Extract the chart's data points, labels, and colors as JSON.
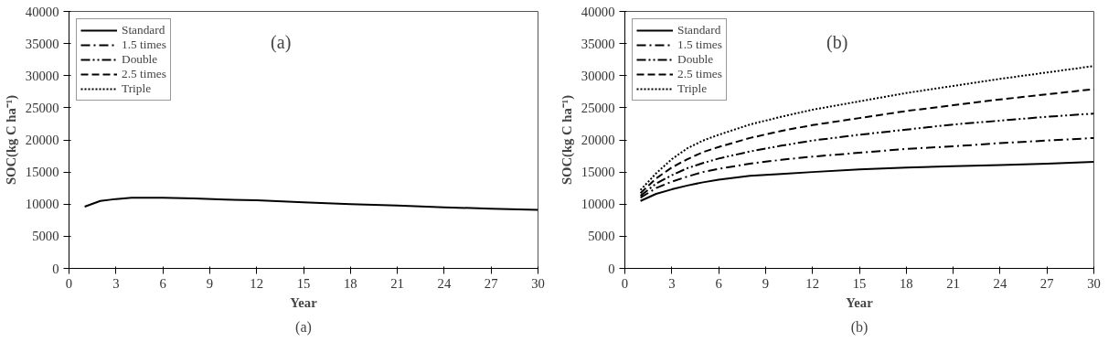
{
  "chart_data": [
    {
      "type": "line",
      "xlabel": "Year",
      "ylabel": "SOC(kg C ha⁻¹)",
      "xlim": [
        0,
        30
      ],
      "ylim": [
        0,
        40000
      ],
      "xticks": [
        0,
        3,
        6,
        9,
        12,
        15,
        18,
        21,
        24,
        27,
        30
      ],
      "yticks": [
        0,
        5000,
        10000,
        15000,
        20000,
        25000,
        30000,
        35000,
        40000
      ],
      "grid": false,
      "legend": "top left",
      "marker": "none",
      "annotations": [
        "(a)",
        "(a)"
      ],
      "x": [
        1,
        2,
        3,
        4,
        5,
        6,
        8,
        10,
        12,
        15,
        18,
        21,
        24,
        27,
        30
      ],
      "series": [
        {
          "name": "Standard",
          "color": "#000000",
          "line_style": "solid",
          "values": [
            9600,
            10500,
            10800,
            11000,
            11000,
            11000,
            10900,
            10700,
            10600,
            10300,
            10000,
            9800,
            9500,
            9300,
            9100
          ]
        },
        {
          "name": "1.5 times",
          "color": "#000000",
          "line_style": "dashdot",
          "values": [
            null,
            null,
            null,
            null,
            null,
            null,
            null,
            null,
            null,
            null,
            null,
            null,
            null,
            null,
            null
          ]
        },
        {
          "name": "Double",
          "color": "#000000",
          "line_style": "dashdotdot",
          "values": [
            null,
            null,
            null,
            null,
            null,
            null,
            null,
            null,
            null,
            null,
            null,
            null,
            null,
            null,
            null
          ]
        },
        {
          "name": "2.5 times",
          "color": "#000000",
          "line_style": "dashed",
          "values": [
            null,
            null,
            null,
            null,
            null,
            null,
            null,
            null,
            null,
            null,
            null,
            null,
            null,
            null,
            null
          ]
        },
        {
          "name": "Triple",
          "color": "#000000",
          "line_style": "dotted",
          "values": [
            null,
            null,
            null,
            null,
            null,
            null,
            null,
            null,
            null,
            null,
            null,
            null,
            null,
            null,
            null
          ]
        }
      ]
    },
    {
      "type": "line",
      "xlabel": "Year",
      "ylabel": "SOC(kg C ha⁻¹)",
      "xlim": [
        0,
        30
      ],
      "ylim": [
        0,
        40000
      ],
      "xticks": [
        0,
        3,
        6,
        9,
        12,
        15,
        18,
        21,
        24,
        27,
        30
      ],
      "yticks": [
        0,
        5000,
        10000,
        15000,
        20000,
        25000,
        30000,
        35000,
        40000
      ],
      "grid": false,
      "legend": "top left",
      "marker": "none",
      "annotations": [
        "(b)",
        "(b)"
      ],
      "x": [
        1,
        2,
        3,
        4,
        5,
        6,
        8,
        10,
        12,
        15,
        18,
        21,
        24,
        27,
        30
      ],
      "series": [
        {
          "name": "Standard",
          "color": "#000000",
          "line_style": "solid",
          "values": [
            10500,
            11600,
            12300,
            12900,
            13400,
            13800,
            14400,
            14700,
            15000,
            15400,
            15700,
            15900,
            16100,
            16300,
            16600
          ]
        },
        {
          "name": "1.5 times",
          "color": "#000000",
          "line_style": "dashdot",
          "values": [
            11000,
            12500,
            13500,
            14300,
            15000,
            15500,
            16300,
            16900,
            17400,
            18000,
            18600,
            19000,
            19500,
            19900,
            20300
          ]
        },
        {
          "name": "Double",
          "color": "#000000",
          "line_style": "dashdotdot",
          "values": [
            11300,
            13200,
            14500,
            15600,
            16400,
            17100,
            18200,
            19100,
            19900,
            20800,
            21600,
            22400,
            23000,
            23600,
            24100
          ]
        },
        {
          "name": "2.5 times",
          "color": "#000000",
          "line_style": "dashed",
          "values": [
            11700,
            14000,
            15700,
            17000,
            18100,
            18900,
            20300,
            21400,
            22300,
            23400,
            24500,
            25400,
            26300,
            27100,
            27900
          ]
        },
        {
          "name": "Triple",
          "color": "#000000",
          "line_style": "dotted",
          "values": [
            12200,
            14800,
            17000,
            18700,
            19900,
            20800,
            22400,
            23600,
            24700,
            26000,
            27300,
            28400,
            29500,
            30500,
            31500
          ]
        }
      ]
    }
  ]
}
